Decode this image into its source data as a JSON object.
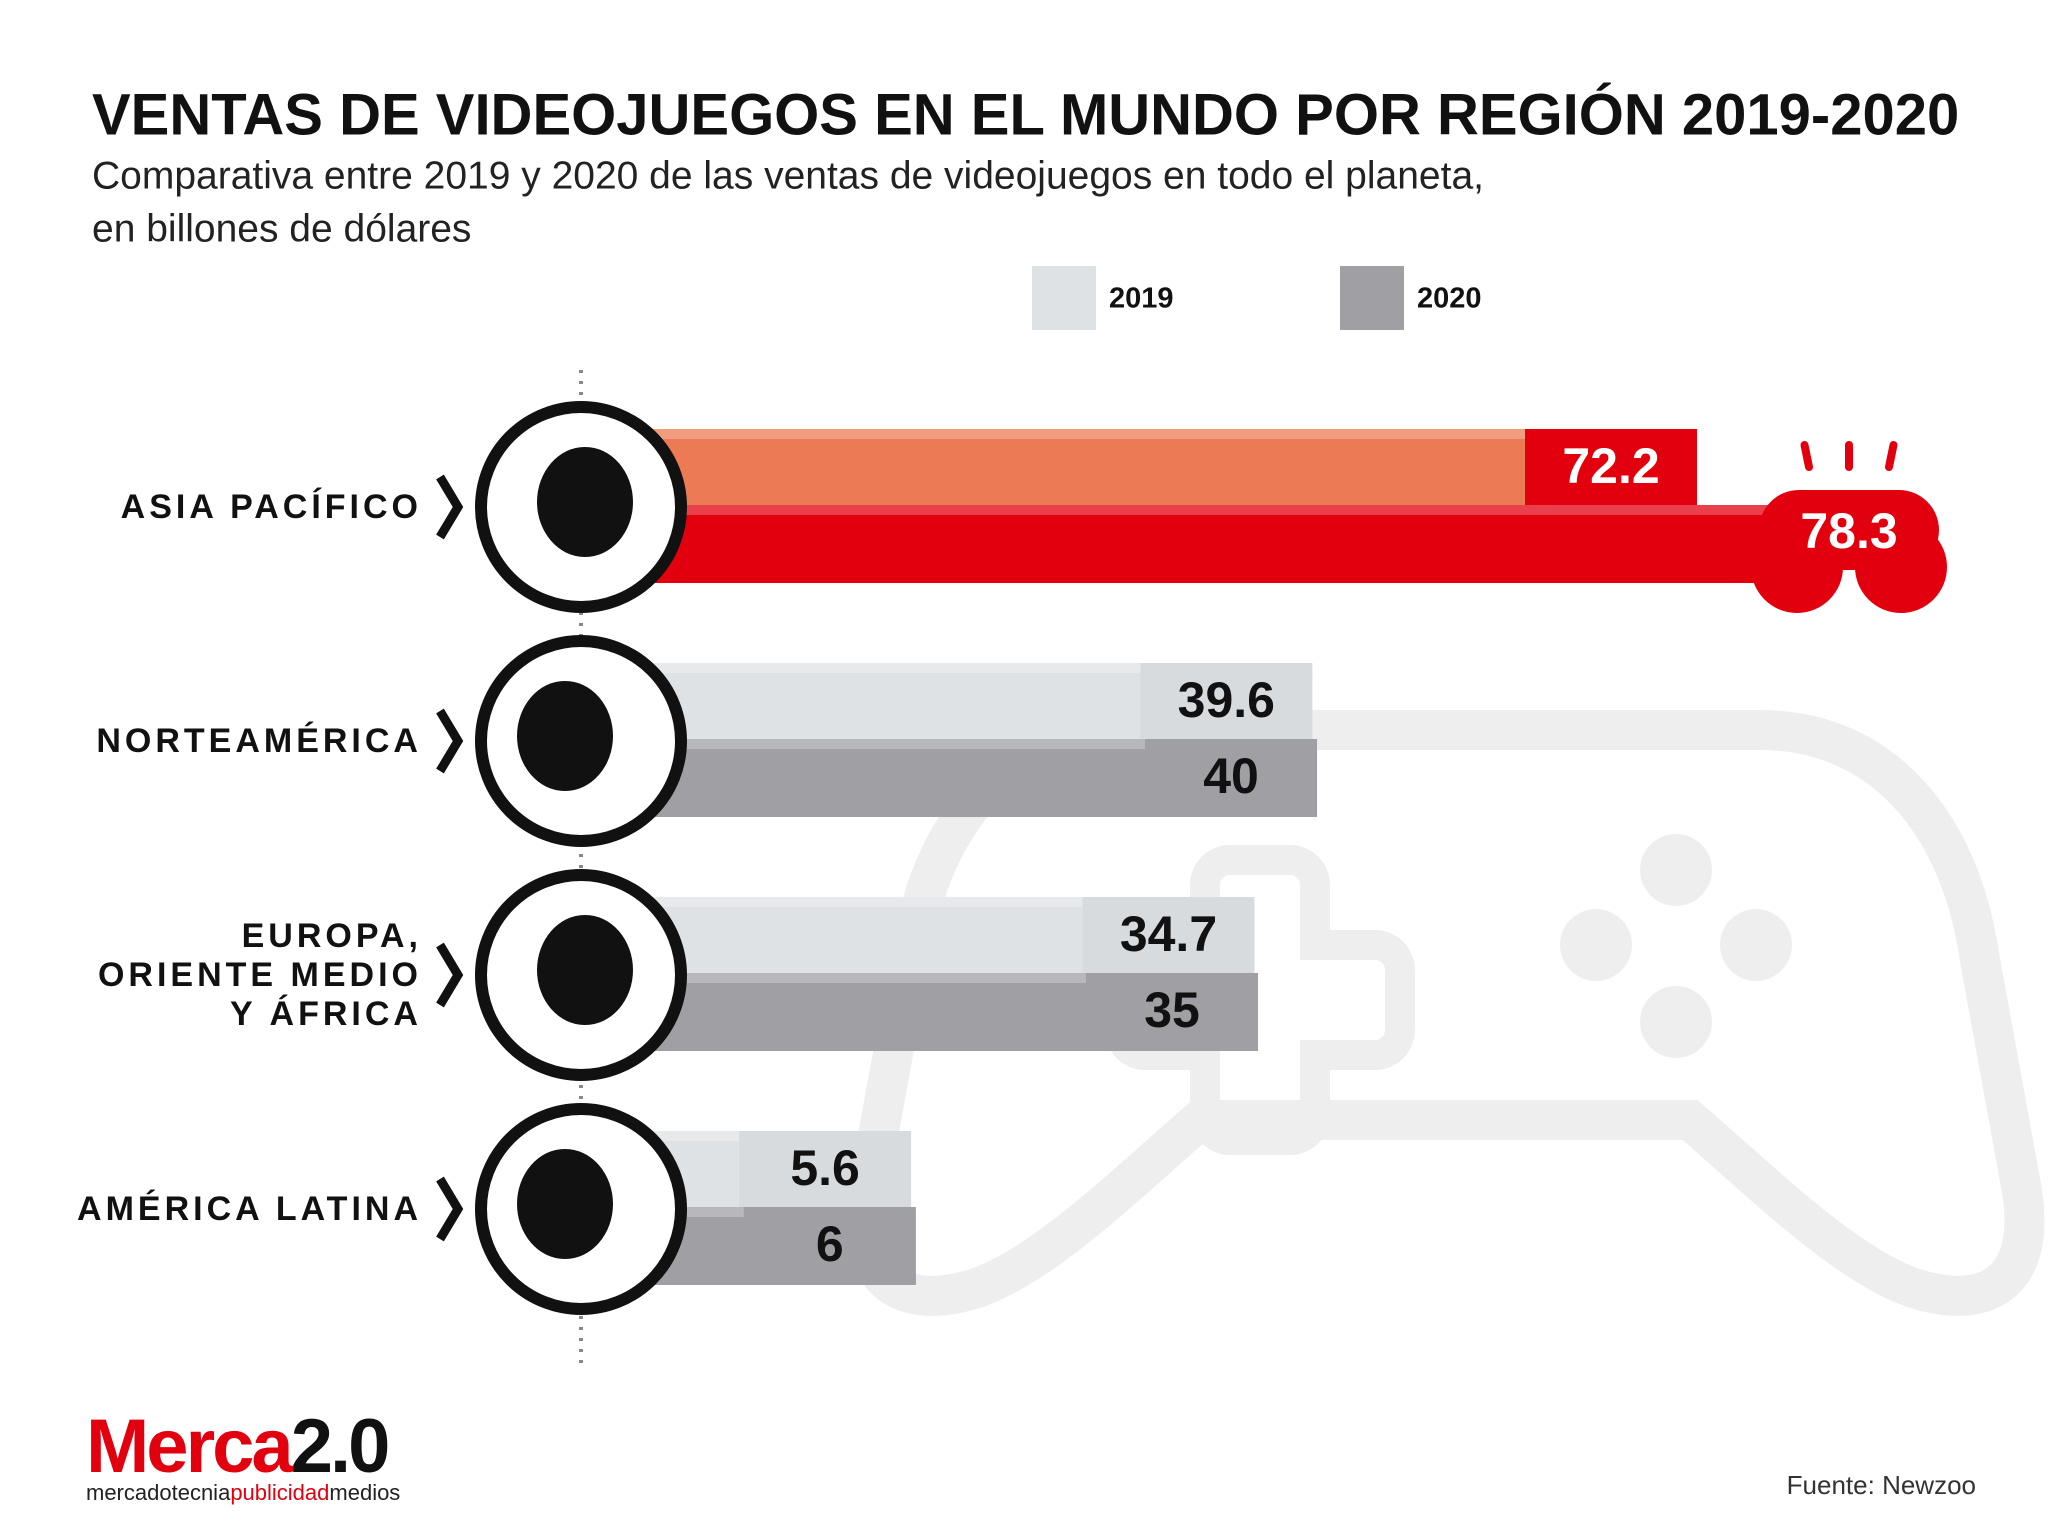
{
  "chart_data": {
    "type": "bar",
    "orientation": "horizontal",
    "title": "VENTAS DE VIDEOJUEGOS EN EL MUNDO POR REGIÓN 2019-2020",
    "subtitle": [
      "Comparativa entre 2019 y 2020 de las ventas de videojuegos en todo el planeta,",
      "en billones de dólares"
    ],
    "categories": [
      [
        "ASIA PACÍFICO"
      ],
      [
        "NORTEAMÉRICA"
      ],
      [
        "EUROPA,",
        "ORIENTE MEDIO",
        "Y ÁFRICA"
      ],
      [
        "AMÉRICA LATINA"
      ]
    ],
    "series": [
      {
        "name": "2019",
        "color": "#dfe2e5",
        "values": [
          72.2,
          39.6,
          34.7,
          5.6
        ],
        "colors": [
          "#ec7a55",
          "#dfe2e5",
          "#dfe2e5",
          "#dfe2e5"
        ],
        "label_box_colors": [
          "#e2000f",
          "#dfe2e5",
          "#dfe2e5",
          "#dfe2e5"
        ],
        "label_text_colors": [
          "#ffffff",
          "#111111",
          "#111111",
          "#111111"
        ]
      },
      {
        "name": "2020",
        "color": "#a09fa4",
        "values": [
          78.3,
          40,
          35,
          6
        ],
        "colors": [
          "#e2000f",
          "#a09fa4",
          "#a09fa4",
          "#a09fa4"
        ],
        "label_box_colors": [
          "#e2000f",
          "#a09fa4",
          "#a09fa4",
          "#a09fa4"
        ],
        "label_text_colors": [
          "#ffffff",
          "#111111",
          "#111111",
          "#111111"
        ]
      }
    ],
    "logo": [
      "Merca",
      "2.0"
    ],
    "tagline": [
      "mercadotecnia",
      "publicidad",
      "medios"
    ],
    "source": "Fuente: Newzoo"
  }
}
